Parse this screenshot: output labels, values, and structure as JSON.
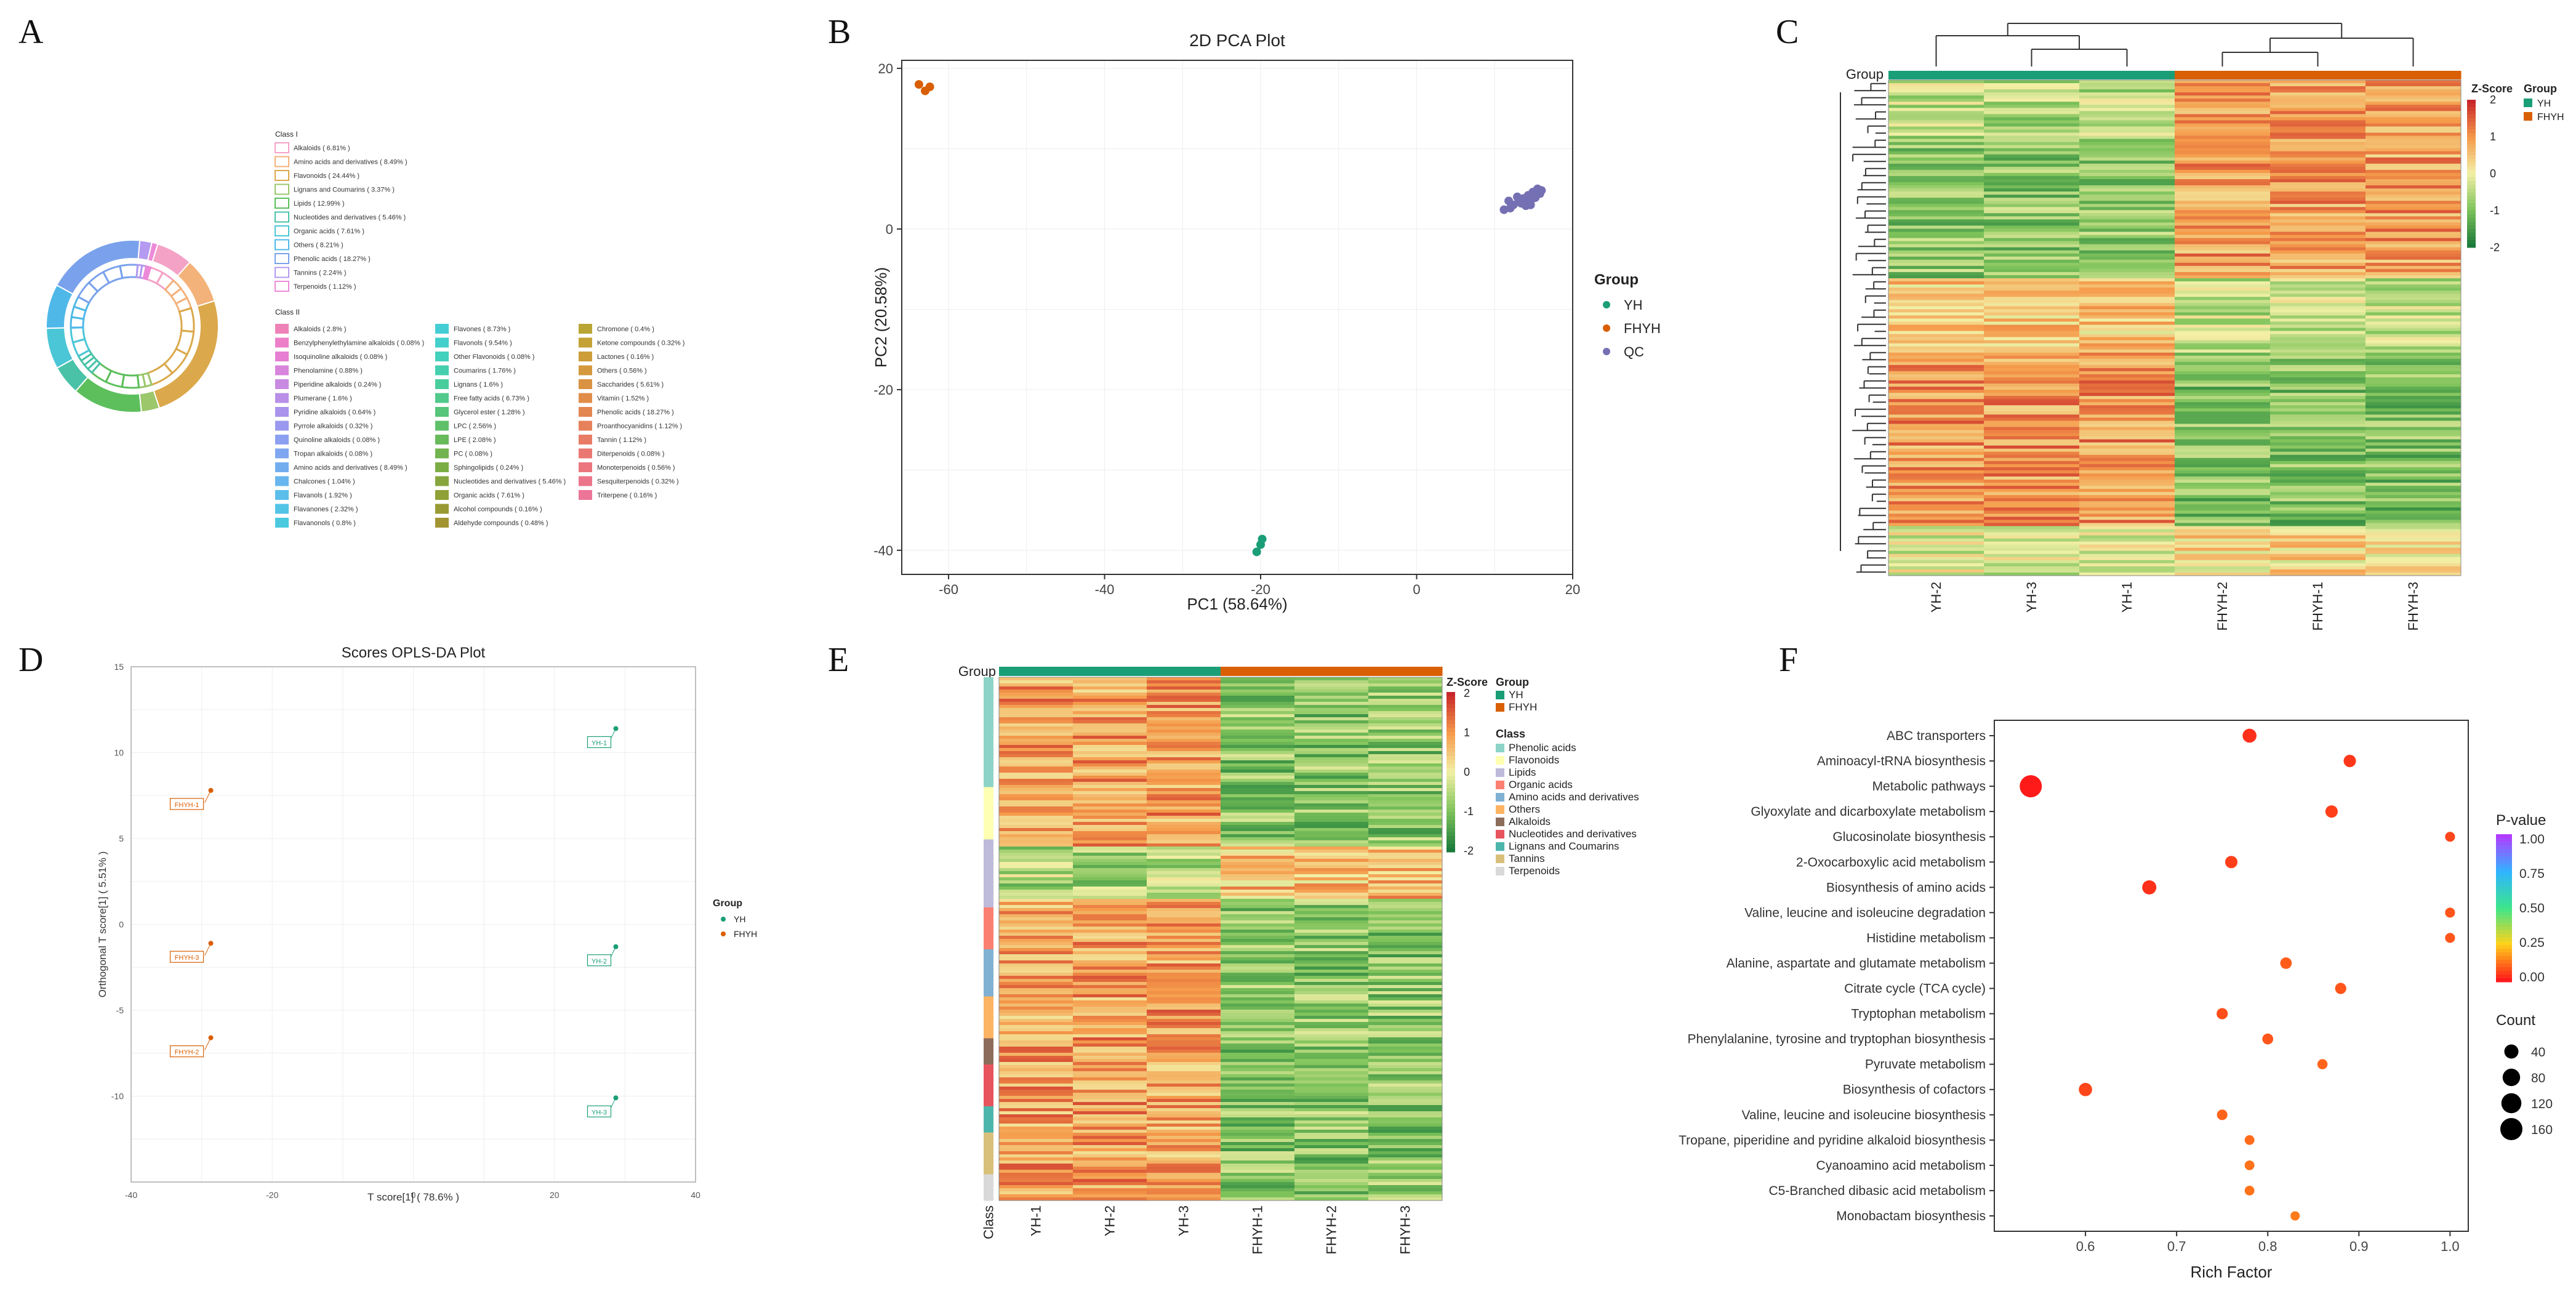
{
  "panels": {
    "A": {
      "letter": "A",
      "class1_title": "Class I",
      "class1_items": [
        {
          "label": "Alkaloids ( 6.81% )",
          "color": "#f4a3c7",
          "share": 6.81
        },
        {
          "label": "Amino acids and derivatives ( 8.49% )",
          "color": "#f3b27a",
          "share": 8.49
        },
        {
          "label": "Flavonoids ( 24.44% )",
          "color": "#dba84b",
          "share": 24.44
        },
        {
          "label": "Lignans and Coumarins ( 3.37% )",
          "color": "#9cc76b",
          "share": 3.37
        },
        {
          "label": "Lipids ( 12.99% )",
          "color": "#5cbf5c",
          "share": 12.99
        },
        {
          "label": "Nucleotides and derivatives ( 5.46% )",
          "color": "#49c2a8",
          "share": 5.46
        },
        {
          "label": "Organic acids ( 7.61% )",
          "color": "#4bc6d6",
          "share": 7.61
        },
        {
          "label": "Others ( 8.21% )",
          "color": "#4fb8e8",
          "share": 8.21
        },
        {
          "label": "Phenolic acids ( 18.27% )",
          "color": "#7aa2ec",
          "share": 18.27
        },
        {
          "label": "Tannins ( 2.24% )",
          "color": "#b49af0",
          "share": 2.24
        },
        {
          "label": "Terpenoids ( 1.12% )",
          "color": "#ec8ad8",
          "share": 1.12
        }
      ],
      "class2_title": "Class II",
      "class2_col1": [
        {
          "label": "Alkaloids ( 2.8% )",
          "color": "#ee82b8"
        },
        {
          "label": "Benzylphenylethylamine alkaloids ( 0.08% )",
          "color": "#ec7fc8"
        },
        {
          "label": "Isoquinoline alkaloids ( 0.08% )",
          "color": "#e67fd2"
        },
        {
          "label": "Phenolamine ( 0.88% )",
          "color": "#d885dc"
        },
        {
          "label": "Piperidine alkaloids ( 0.24% )",
          "color": "#c98ae2"
        },
        {
          "label": "Plumerane ( 1.6% )",
          "color": "#b98fe8"
        },
        {
          "label": "Pyridine alkaloids ( 0.64% )",
          "color": "#a993ec"
        },
        {
          "label": "Pyrrole alkaloids ( 0.32% )",
          "color": "#9a99ef"
        },
        {
          "label": "Quinoline alkaloids ( 0.08% )",
          "color": "#8c9ff0"
        },
        {
          "label": "Tropan alkaloids ( 0.08% )",
          "color": "#7fa6f0"
        },
        {
          "label": "Amino acids and derivatives ( 8.49% )",
          "color": "#72aeef"
        },
        {
          "label": "Chalcones ( 1.04% )",
          "color": "#67b6ed"
        },
        {
          "label": "Flavanols ( 1.92% )",
          "color": "#5cbeea"
        },
        {
          "label": "Flavanones ( 2.32% )",
          "color": "#52c4e5"
        },
        {
          "label": "Flavanonols ( 0.8% )",
          "color": "#4ac9df"
        }
      ],
      "class2_col2": [
        {
          "label": "Flavones ( 8.73% )",
          "color": "#45cdd6"
        },
        {
          "label": "Flavonols ( 9.54% )",
          "color": "#43cfcb"
        },
        {
          "label": "Other Flavonoids ( 0.08% )",
          "color": "#43d0bd"
        },
        {
          "label": "Coumarins ( 1.76% )",
          "color": "#45cfae"
        },
        {
          "label": "Lignans ( 1.6% )",
          "color": "#4acd9d"
        },
        {
          "label": "Free fatty acids ( 6.73% )",
          "color": "#50c98b"
        },
        {
          "label": "Glycerol ester ( 1.28% )",
          "color": "#57c57a"
        },
        {
          "label": "LPC ( 2.56% )",
          "color": "#5fc069"
        },
        {
          "label": "LPE ( 2.08% )",
          "color": "#68ba5b"
        },
        {
          "label": "PC ( 0.08% )",
          "color": "#72b44f"
        },
        {
          "label": "Sphingolipids ( 0.24% )",
          "color": "#7cad45"
        },
        {
          "label": "Nucleotides and derivatives ( 5.46% )",
          "color": "#86a63d"
        },
        {
          "label": "Organic acids ( 7.61% )",
          "color": "#8fa037"
        },
        {
          "label": "Alcohol compounds ( 0.16% )",
          "color": "#999a33"
        },
        {
          "label": "Aldehyde compounds ( 0.48% )",
          "color": "#a29431"
        }
      ],
      "class2_col3": [
        {
          "label": "Chromone ( 0.4% )",
          "color": "#b9a533"
        },
        {
          "label": "Ketone compounds ( 0.32% )",
          "color": "#c4a236"
        },
        {
          "label": "Lactones ( 0.16% )",
          "color": "#cd9d39"
        },
        {
          "label": "Others ( 0.56% )",
          "color": "#d4983d"
        },
        {
          "label": "Saccharides ( 5.61% )",
          "color": "#da9342"
        },
        {
          "label": "Vitamin ( 1.52% )",
          "color": "#df8d49"
        },
        {
          "label": "Phenolic acids ( 18.27% )",
          "color": "#e38751"
        },
        {
          "label": "Proanthocyanidins ( 1.12% )",
          "color": "#e6815b"
        },
        {
          "label": "Tannin ( 1.12% )",
          "color": "#e87c66"
        },
        {
          "label": "Diterpenoids ( 0.08% )",
          "color": "#ea7872"
        },
        {
          "label": "Monoterpenoids ( 0.56% )",
          "color": "#eb767e"
        },
        {
          "label": "Sesquiterpenoids ( 0.32% )",
          "color": "#ec758b"
        },
        {
          "label": "Triterpene ( 0.16% )",
          "color": "#ec7598"
        }
      ]
    },
    "B": {
      "letter": "B"
    },
    "C": {
      "letter": "C",
      "group_label": "Group",
      "zscore_title": "Z-Score",
      "zscore_ticks": [
        "2",
        "1",
        "0",
        "-1",
        "-2"
      ],
      "group_legend_title": "Group",
      "group_legend": [
        {
          "label": "YH",
          "color": "#1a9e77"
        },
        {
          "label": "FHYH",
          "color": "#d95f02"
        }
      ],
      "columns": [
        "YH-2",
        "YH-3",
        "YH-1",
        "FHYH-2",
        "FHYH-1",
        "FHYH-3"
      ],
      "column_groups": [
        "YH",
        "YH",
        "YH",
        "FHYH",
        "FHYH",
        "FHYH"
      ]
    },
    "D": {
      "letter": "D"
    },
    "E": {
      "letter": "E",
      "group_label": "Group",
      "class_label": "Class",
      "zscore_title": "Z-Score",
      "zscore_ticks": [
        "2",
        "1",
        "0",
        "-1",
        "-2"
      ],
      "group_legend_title": "Group",
      "group_legend": [
        {
          "label": "YH",
          "color": "#1a9e77"
        },
        {
          "label": "FHYH",
          "color": "#d95f02"
        }
      ],
      "class_legend_title": "Class",
      "class_legend": [
        {
          "label": "Phenolic acids",
          "color": "#8dd3c7"
        },
        {
          "label": "Flavonoids",
          "color": "#ffffb3"
        },
        {
          "label": "Lipids",
          "color": "#bebada"
        },
        {
          "label": "Organic acids",
          "color": "#fb8072"
        },
        {
          "label": "Amino acids and derivatives",
          "color": "#80b1d3"
        },
        {
          "label": "Others",
          "color": "#fdb462"
        },
        {
          "label": "Alkaloids",
          "color": "#8c6d5c"
        },
        {
          "label": "Nucleotides and derivatives",
          "color": "#e7545e"
        },
        {
          "label": "Lignans and Coumarins",
          "color": "#4db6ac"
        },
        {
          "label": "Tannins",
          "color": "#d9c07a"
        },
        {
          "label": "Terpenoids",
          "color": "#d9d9d9"
        }
      ],
      "class_fractions": [
        0.21,
        0.1,
        0.13,
        0.08,
        0.09,
        0.08,
        0.05,
        0.08,
        0.05,
        0.08,
        0.05
      ],
      "columns": [
        "YH-1",
        "YH-2",
        "YH-3",
        "FHYH-1",
        "FHYH-2",
        "FHYH-3"
      ],
      "column_groups": [
        "YH",
        "YH",
        "YH",
        "FHYH",
        "FHYH",
        "FHYH"
      ]
    },
    "F": {
      "letter": "F"
    }
  },
  "chart_data": [
    {
      "panel": "A",
      "type": "pie",
      "subtype": "two-ring donut",
      "title": "",
      "categories": [
        "Alkaloids",
        "Amino acids and derivatives",
        "Flavonoids",
        "Lignans and Coumarins",
        "Lipids",
        "Nucleotides and derivatives",
        "Organic acids",
        "Others",
        "Phenolic acids",
        "Tannins",
        "Terpenoids"
      ],
      "values": [
        6.81,
        8.49,
        24.44,
        3.37,
        12.99,
        5.46,
        7.61,
        8.21,
        18.27,
        2.24,
        1.12
      ],
      "units": "%"
    },
    {
      "panel": "B",
      "type": "scatter",
      "title": "2D PCA Plot",
      "xlabel": "PC1 (58.64%)",
      "ylabel": "PC2 (20.58%)",
      "xlim": [
        -66,
        20
      ],
      "ylim": [
        -43,
        21
      ],
      "xticks": [
        -60,
        -40,
        -20,
        0,
        20
      ],
      "yticks": [
        -40,
        -20,
        0,
        20
      ],
      "legend_title": "Group",
      "legend_position": "right",
      "series": [
        {
          "name": "YH",
          "color": "#1a9e77",
          "points": [
            [
              -20.5,
              -40.2
            ],
            [
              -20.0,
              -39.3
            ],
            [
              -19.8,
              -38.6
            ]
          ]
        },
        {
          "name": "FHYH",
          "color": "#d95f02",
          "points": [
            [
              -63.8,
              18.0
            ],
            [
              -63.0,
              17.2
            ],
            [
              -62.4,
              17.7
            ]
          ]
        },
        {
          "name": "QC",
          "color": "#7570b3",
          "points": [
            [
              11.2,
              2.4
            ],
            [
              11.8,
              3.5
            ],
            [
              12.4,
              3.0
            ],
            [
              12.9,
              4.0
            ],
            [
              13.4,
              3.2
            ],
            [
              13.7,
              3.8
            ],
            [
              14.0,
              2.9
            ],
            [
              14.3,
              4.2
            ],
            [
              14.6,
              3.5
            ],
            [
              14.9,
              4.6
            ],
            [
              15.2,
              3.9
            ],
            [
              15.5,
              5.0
            ],
            [
              15.8,
              4.4
            ],
            [
              16.0,
              4.8
            ],
            [
              13.1,
              3.5
            ],
            [
              14.6,
              3.0
            ],
            [
              12.0,
              2.6
            ]
          ]
        }
      ]
    },
    {
      "panel": "C",
      "type": "heatmap",
      "title": "",
      "columns": [
        "YH-2",
        "YH-3",
        "YH-1",
        "FHYH-2",
        "FHYH-1",
        "FHYH-3"
      ],
      "zscore_range": [
        -2,
        2
      ]
    },
    {
      "panel": "D",
      "type": "scatter",
      "title": "Scores OPLS-DA Plot",
      "xlabel": "T score[1] ( 78.6% )",
      "ylabel": "Orthogonal T score[1] ( 5.51% )",
      "xlim": [
        -40,
        40
      ],
      "ylim": [
        -15,
        15
      ],
      "xticks": [
        -40,
        -20,
        0,
        20,
        40
      ],
      "yticks": [
        -10,
        -5,
        0,
        5,
        10,
        15
      ],
      "legend_title": "Group",
      "legend_position": "right",
      "series": [
        {
          "name": "YH",
          "color": "#1a9e77",
          "points": [
            {
              "x": 28.7,
              "y": 11.4,
              "label": "YH-1"
            },
            {
              "x": 28.7,
              "y": -1.3,
              "label": "YH-2"
            },
            {
              "x": 28.7,
              "y": -10.1,
              "label": "YH-3"
            }
          ]
        },
        {
          "name": "FHYH",
          "color": "#d95f02",
          "points": [
            {
              "x": -28.7,
              "y": 7.8,
              "label": "FHYH-1"
            },
            {
              "x": -28.7,
              "y": -1.1,
              "label": "FHYH-3"
            },
            {
              "x": -28.7,
              "y": -6.6,
              "label": "FHYH-2"
            }
          ]
        }
      ]
    },
    {
      "panel": "E",
      "type": "heatmap",
      "title": "",
      "columns": [
        "YH-1",
        "YH-2",
        "YH-3",
        "FHYH-1",
        "FHYH-2",
        "FHYH-3"
      ],
      "zscore_range": [
        -2,
        2
      ]
    },
    {
      "panel": "F",
      "type": "scatter",
      "subtype": "KEGG enrichment bubble",
      "title": "",
      "xlabel": "Rich Factor",
      "ylabel": "",
      "xlim": [
        0.5,
        1.02
      ],
      "xticks": [
        0.6,
        0.7,
        0.8,
        0.9,
        1.0
      ],
      "pvalue_legend_title": "P-value",
      "pvalue_ticks": [
        "1.00",
        "0.75",
        "0.50",
        "0.25",
        "0.00"
      ],
      "count_legend_title": "Count",
      "count_legend_values": [
        40,
        80,
        120,
        160
      ],
      "categories": [
        "ABC transporters",
        "Aminoacyl-tRNA biosynthesis",
        "Metabolic pathways",
        "Glyoxylate and dicarboxylate metabolism",
        "Glucosinolate biosynthesis",
        "2-Oxocarboxylic acid metabolism",
        "Biosynthesis of amino acids",
        "Valine, leucine and isoleucine degradation",
        "Histidine metabolism",
        "Alanine, aspartate and glutamate metabolism",
        "Citrate cycle (TCA cycle)",
        "Tryptophan metabolism",
        "Phenylalanine, tyrosine and tryptophan biosynthesis",
        "Pyruvate metabolism",
        "Biosynthesis of cofactors",
        "Valine, leucine and isoleucine biosynthesis",
        "Tropane, piperidine and pyridine alkaloid biosynthesis",
        "Cyanoamino acid metabolism",
        "C5-Branched dibasic acid metabolism",
        "Monobactam biosynthesis"
      ],
      "rich_factor": [
        0.78,
        0.89,
        0.54,
        0.87,
        1.0,
        0.76,
        0.67,
        1.0,
        1.0,
        0.82,
        0.88,
        0.75,
        0.8,
        0.86,
        0.6,
        0.75,
        0.78,
        0.78,
        0.78,
        0.83
      ],
      "count": [
        38,
        24,
        160,
        24,
        9,
        24,
        40,
        9,
        9,
        18,
        16,
        16,
        14,
        10,
        32,
        12,
        8,
        8,
        8,
        6
      ],
      "pvalue": [
        0.03,
        0.04,
        0.0,
        0.05,
        0.06,
        0.05,
        0.03,
        0.08,
        0.08,
        0.09,
        0.08,
        0.07,
        0.08,
        0.1,
        0.06,
        0.1,
        0.11,
        0.12,
        0.12,
        0.13
      ]
    }
  ]
}
